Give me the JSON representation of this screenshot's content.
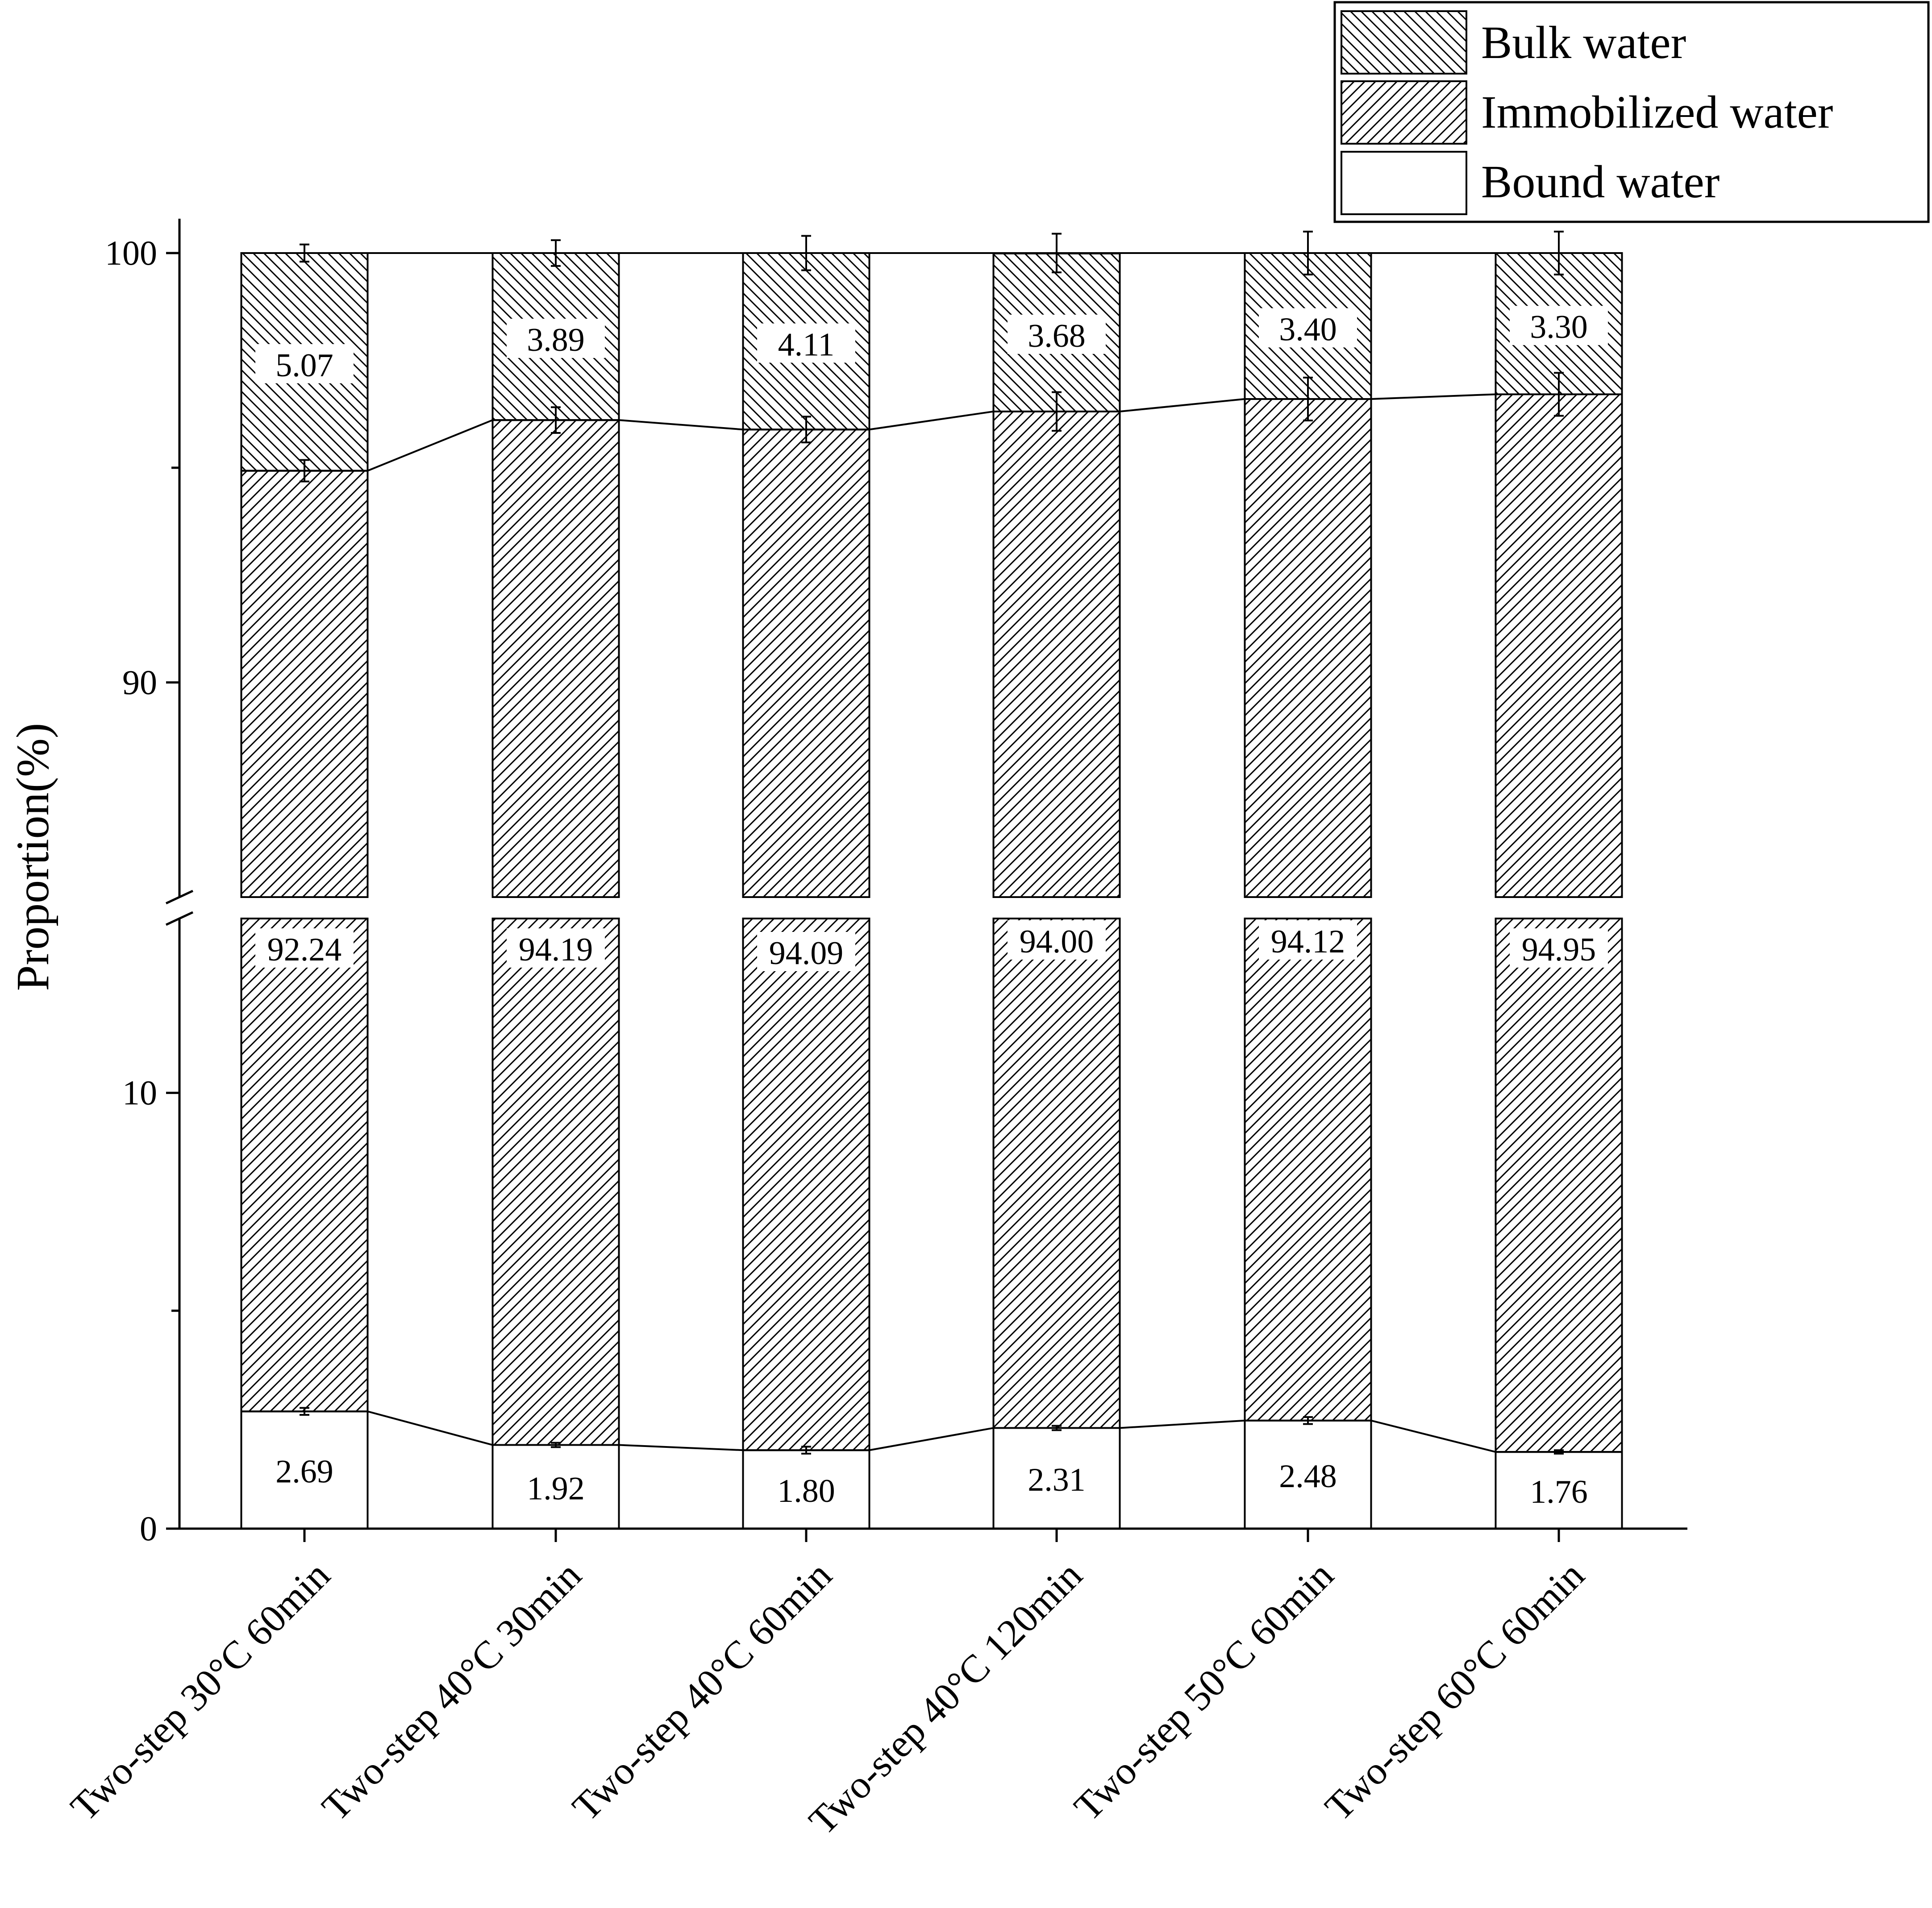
{
  "chart_data": {
    "type": "bar",
    "stacked": true,
    "broken_axis": true,
    "categories": [
      "Two-step 30°C 60min",
      "Two-step 40°C 30min",
      "Two-step 40°C 60min",
      "Two-step 40°C 120min",
      "Two-step 50°C 60min",
      "Two-step 60°C 60min"
    ],
    "series": [
      {
        "name": "Bound water",
        "pattern": "none",
        "values": [
          2.69,
          1.92,
          1.8,
          2.31,
          2.48,
          1.76
        ],
        "labels": [
          "2.69",
          "1.92",
          "1.80",
          "2.31",
          "2.48",
          "1.76"
        ],
        "error": [
          0.08,
          0.05,
          0.08,
          0.05,
          0.08,
          0.04
        ]
      },
      {
        "name": "Immobilized water",
        "pattern": "forward-hatch",
        "values": [
          92.24,
          94.19,
          94.09,
          94.0,
          94.12,
          94.95
        ],
        "labels": [
          "92.24",
          "94.19",
          "94.09",
          "94.00",
          "94.12",
          "94.95"
        ],
        "error": [
          0.25,
          0.3,
          0.3,
          0.45,
          0.5,
          0.5
        ]
      },
      {
        "name": "Bulk water",
        "pattern": "back-hatch",
        "values": [
          5.07,
          3.89,
          4.11,
          3.68,
          3.4,
          3.3
        ],
        "labels": [
          "5.07",
          "3.89",
          "4.11",
          "3.68",
          "3.40",
          "3.30"
        ],
        "error": [
          0.2,
          0.3,
          0.4,
          0.45,
          0.5,
          0.5
        ]
      }
    ],
    "ylabel": "Proportion(%)",
    "xlabel": "",
    "title": "",
    "y_segments": [
      {
        "ylim": [
          0,
          14
        ],
        "ticks": [
          "0",
          "10"
        ]
      },
      {
        "ylim": [
          85,
          100.8
        ],
        "ticks": [
          "90",
          "100"
        ]
      }
    ],
    "legend_position": "top-right",
    "grid": false
  }
}
